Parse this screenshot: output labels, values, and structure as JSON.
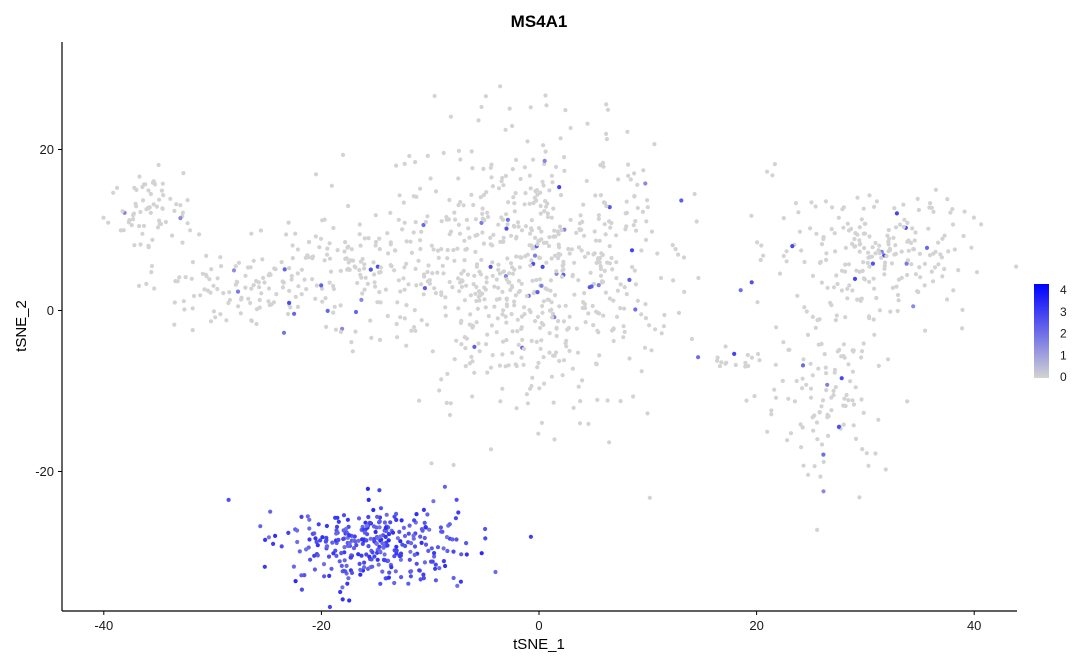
{
  "chart_data": {
    "type": "scatter",
    "title": "MS4A1",
    "xlabel": "tSNE_1",
    "ylabel": "tSNE_2",
    "xlim": [
      -44,
      44
    ],
    "ylim": [
      -37,
      32
    ],
    "x_ticks": [
      -40,
      -20,
      0,
      20,
      40
    ],
    "y_ticks": [
      -20,
      0,
      20
    ],
    "x_tick_labels": [
      "-40",
      "-20",
      "0",
      "20",
      "40"
    ],
    "y_tick_labels": [
      "-20",
      "0",
      "20"
    ],
    "grid": false,
    "legend": {
      "type": "colorbar",
      "placement": "right",
      "min": 0,
      "max": 4,
      "ticks": [
        4,
        3,
        2,
        1,
        0
      ],
      "tick_labels": [
        "4",
        "3",
        "2",
        "1",
        "0"
      ],
      "low_color": "#d3d3d3",
      "high_color": "#0000ff"
    },
    "clusters": [
      {
        "center": [
          -35.5,
          13
        ],
        "spread": [
          2.2,
          2.8
        ],
        "count": 70,
        "expr": 0
      },
      {
        "center": [
          -29,
          3
        ],
        "spread": [
          3.2,
          2.5
        ],
        "count": 90,
        "expr": 0
      },
      {
        "center": [
          -20.5,
          6
        ],
        "spread": [
          3.3,
          3.0
        ],
        "count": 90,
        "expr": 0
      },
      {
        "center": [
          -15,
          3
        ],
        "spread": [
          2.5,
          4.5
        ],
        "count": 50,
        "expr": 0
      },
      {
        "center": [
          -1,
          5
        ],
        "spread": [
          6.5,
          8.5
        ],
        "count": 700,
        "expr": 0
      },
      {
        "center": [
          30.5,
          7
        ],
        "spread": [
          4.5,
          3.8
        ],
        "count": 220,
        "expr": 0
      },
      {
        "center": [
          26.5,
          -9
        ],
        "spread": [
          2.8,
          5.5
        ],
        "count": 120,
        "expr": 0
      },
      {
        "center": [
          18.5,
          -6
        ],
        "spread": [
          1.3,
          0.6
        ],
        "count": 15,
        "expr": 0
      },
      {
        "center": [
          21.5,
          17.5
        ],
        "spread": [
          0.5,
          0.7
        ],
        "count": 3,
        "expr": 0
      },
      {
        "center": [
          -15,
          -29
        ],
        "spread": [
          4.0,
          2.6
        ],
        "count": 320,
        "expr": 3
      }
    ]
  }
}
